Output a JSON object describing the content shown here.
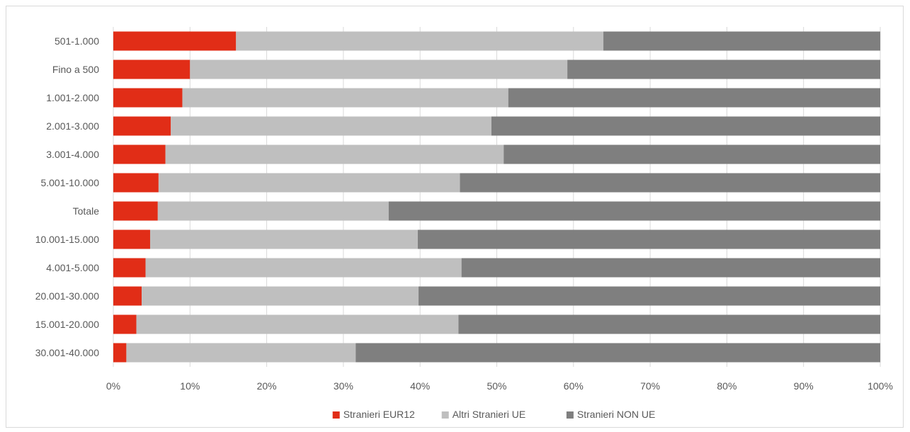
{
  "chart_data": {
    "type": "bar",
    "orientation": "horizontal",
    "stacked": "percent",
    "categories": [
      "501-1.000",
      "Fino a 500",
      "1.001-2.000",
      "2.001-3.000",
      "3.001-4.000",
      "5.001-10.000",
      "Totale",
      "10.001-15.000",
      "4.001-5.000",
      "20.001-30.000",
      "15.001-20.000",
      "30.001-40.000"
    ],
    "series": [
      {
        "name": "Stranieri EUR12",
        "color": "#e12d17",
        "values": [
          16.0,
          10.0,
          9.0,
          7.5,
          6.8,
          5.9,
          5.8,
          4.8,
          4.2,
          3.7,
          3.0,
          1.7
        ]
      },
      {
        "name": "Altri Stranieri UE",
        "color": "#bfbfbf",
        "values": [
          47.9,
          49.2,
          42.5,
          41.8,
          44.1,
          39.3,
          30.1,
          34.9,
          41.2,
          36.1,
          42.0,
          29.9
        ]
      },
      {
        "name": "Stranieri NON UE",
        "color": "#7f7f7f",
        "values": [
          36.1,
          40.8,
          48.5,
          50.7,
          49.1,
          54.8,
          64.1,
          60.3,
          54.6,
          60.2,
          55.0,
          68.4
        ]
      }
    ],
    "xlim": [
      0,
      100
    ],
    "x_ticks": [
      "0%",
      "10%",
      "20%",
      "30%",
      "40%",
      "50%",
      "60%",
      "70%",
      "80%",
      "90%",
      "100%"
    ],
    "grid": "vertical",
    "legend": "bottom"
  }
}
